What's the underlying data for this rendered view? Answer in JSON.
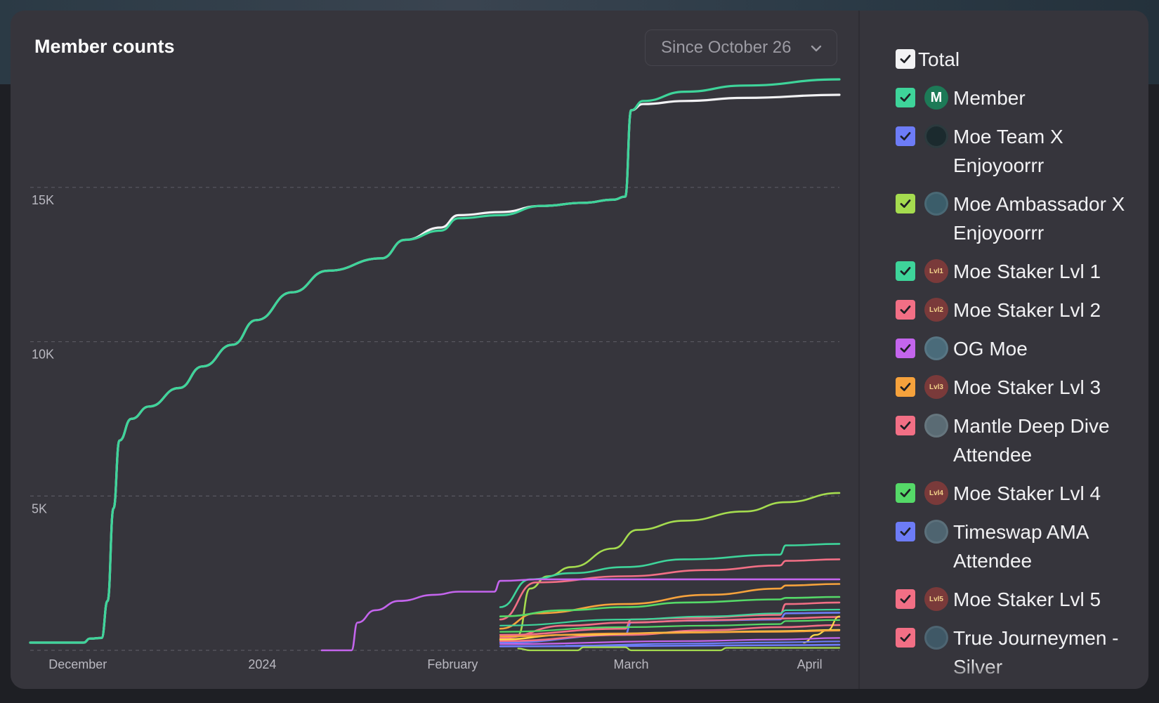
{
  "title": "Member counts",
  "range_select": {
    "label": "Since October 26",
    "icon": "chevron-down-icon"
  },
  "chart_data": {
    "type": "line",
    "title": "Member counts",
    "xlabel": "",
    "ylabel": "",
    "x_ticks": [
      "December",
      "2024",
      "February",
      "March",
      "April"
    ],
    "x_tick_positions": [
      18,
      49,
      81,
      111,
      141
    ],
    "x_domain": [
      10,
      146
    ],
    "y_ticks": [
      "5K",
      "10K",
      "15K"
    ],
    "y_tick_values": [
      5000,
      10000,
      15000
    ],
    "ylim": [
      0,
      18000
    ],
    "grid": "horizontal dashed",
    "series": [
      {
        "name": "Total",
        "color": "#f2f2f4",
        "width": 3.2,
        "points": [
          [
            10,
            250
          ],
          [
            19,
            250
          ],
          [
            20,
            380
          ],
          [
            22,
            400
          ],
          [
            23,
            1600
          ],
          [
            24,
            4600
          ],
          [
            25,
            6800
          ],
          [
            27,
            7500
          ],
          [
            30,
            7900
          ],
          [
            35,
            8500
          ],
          [
            39,
            9200
          ],
          [
            44,
            9900
          ],
          [
            48,
            10700
          ],
          [
            54,
            11600
          ],
          [
            60,
            12300
          ],
          [
            69,
            12700
          ],
          [
            73,
            13300
          ],
          [
            79,
            13700
          ],
          [
            82,
            14100
          ],
          [
            89,
            14200
          ],
          [
            96,
            14400
          ],
          [
            103,
            14500
          ],
          [
            108,
            14600
          ],
          [
            110,
            14700
          ],
          [
            111,
            17500
          ],
          [
            113,
            17700
          ],
          [
            120,
            17800
          ],
          [
            130,
            17900
          ],
          [
            146,
            18000
          ]
        ]
      },
      {
        "name": "Member",
        "color": "#3ed49a",
        "width": 3.2,
        "points": [
          [
            10,
            250
          ],
          [
            19,
            250
          ],
          [
            20,
            380
          ],
          [
            22,
            400
          ],
          [
            23,
            1600
          ],
          [
            24,
            4600
          ],
          [
            25,
            6800
          ],
          [
            27,
            7500
          ],
          [
            30,
            7900
          ],
          [
            35,
            8500
          ],
          [
            39,
            9200
          ],
          [
            44,
            9900
          ],
          [
            48,
            10700
          ],
          [
            54,
            11600
          ],
          [
            60,
            12300
          ],
          [
            69,
            12700
          ],
          [
            73,
            13300
          ],
          [
            79,
            13600
          ],
          [
            82,
            14000
          ],
          [
            89,
            14100
          ],
          [
            96,
            14400
          ],
          [
            103,
            14500
          ],
          [
            108,
            14600
          ],
          [
            110,
            14700
          ],
          [
            111,
            17500
          ],
          [
            113,
            17800
          ],
          [
            120,
            18100
          ],
          [
            130,
            18300
          ],
          [
            146,
            18500
          ]
        ]
      },
      {
        "name": "Moe Team X Enjoyoorrr",
        "color": "#6d7cf7",
        "width": 2.6,
        "points": [
          [
            89,
            130
          ],
          [
            110,
            140
          ],
          [
            126,
            160
          ],
          [
            140,
            170
          ],
          [
            146,
            180
          ]
        ]
      },
      {
        "name": "Moe Ambassador X Enjoyoorrr",
        "color": "#a5dc4f",
        "width": 2.6,
        "points": [
          [
            92,
            500
          ],
          [
            94,
            2000
          ],
          [
            97,
            2400
          ],
          [
            101,
            2700
          ],
          [
            108,
            3300
          ],
          [
            112,
            3900
          ],
          [
            120,
            4200
          ],
          [
            130,
            4500
          ],
          [
            137,
            4800
          ],
          [
            146,
            5100
          ]
        ]
      },
      {
        "name": "Moe Staker Lvl 1",
        "color": "#3ed49a",
        "width": 2.6,
        "points": [
          [
            89,
            1400
          ],
          [
            94,
            2300
          ],
          [
            101,
            2500
          ],
          [
            110,
            2700
          ],
          [
            120,
            2950
          ],
          [
            136,
            3100
          ],
          [
            137,
            3400
          ],
          [
            146,
            3450
          ]
        ]
      },
      {
        "name": "Moe Staker Lvl 2",
        "color": "#f26f85",
        "width": 2.6,
        "points": [
          [
            89,
            1000
          ],
          [
            95,
            2200
          ],
          [
            110,
            2400
          ],
          [
            124,
            2600
          ],
          [
            136,
            2750
          ],
          [
            137,
            2900
          ],
          [
            146,
            2950
          ]
        ]
      },
      {
        "name": "OG Moe",
        "color": "#c465ed",
        "width": 2.6,
        "points": [
          [
            59,
            0
          ],
          [
            64,
            0
          ],
          [
            65,
            900
          ],
          [
            68,
            1300
          ],
          [
            72,
            1600
          ],
          [
            78,
            1800
          ],
          [
            82,
            1900
          ],
          [
            88,
            1900
          ],
          [
            89,
            2250
          ],
          [
            96,
            2300
          ],
          [
            110,
            2300
          ],
          [
            146,
            2300
          ]
        ]
      },
      {
        "name": "Moe Staker Lvl 3",
        "color": "#f6a23c",
        "width": 2.6,
        "points": [
          [
            89,
            700
          ],
          [
            95,
            1200
          ],
          [
            110,
            1500
          ],
          [
            124,
            1800
          ],
          [
            136,
            2000
          ],
          [
            137,
            2100
          ],
          [
            146,
            2150
          ]
        ]
      },
      {
        "name": "Mantle Deep Dive Attendee",
        "color": "#f26f85",
        "width": 2.6,
        "points": [
          [
            89,
            500
          ],
          [
            110,
            700
          ],
          [
            111,
            1000
          ],
          [
            120,
            1050
          ],
          [
            136,
            1150
          ],
          [
            137,
            1500
          ],
          [
            146,
            1550
          ]
        ]
      },
      {
        "name": "Moe Staker Lvl 4",
        "color": "#55d968",
        "width": 2.6,
        "points": [
          [
            89,
            1100
          ],
          [
            100,
            1300
          ],
          [
            110,
            1400
          ],
          [
            120,
            1550
          ],
          [
            136,
            1650
          ],
          [
            137,
            1700
          ],
          [
            146,
            1730
          ]
        ]
      },
      {
        "name": "Timeswap AMA Attendee",
        "color": "#6d7cf7",
        "width": 2.6,
        "points": [
          [
            89,
            250
          ],
          [
            110,
            500
          ],
          [
            111,
            900
          ],
          [
            120,
            960
          ],
          [
            136,
            1000
          ],
          [
            137,
            1200
          ],
          [
            146,
            1220
          ]
        ]
      },
      {
        "name": "Moe Staker Lvl 5",
        "color": "#f26f85",
        "width": 2.6,
        "points": [
          [
            89,
            300
          ],
          [
            110,
            500
          ],
          [
            124,
            650
          ],
          [
            136,
            750
          ],
          [
            146,
            820
          ]
        ]
      },
      {
        "name": "True Journeymen - Silver",
        "color": "#f26f85",
        "width": 2.6,
        "points": [
          [
            89,
            400
          ],
          [
            100,
            800
          ],
          [
            110,
            900
          ],
          [
            124,
            980
          ],
          [
            136,
            1030
          ],
          [
            146,
            1080
          ]
        ]
      },
      {
        "name": "",
        "color": "#ffd84a",
        "width": 2.6,
        "points": [
          [
            89,
            350
          ],
          [
            100,
            500
          ],
          [
            120,
            580
          ],
          [
            136,
            620
          ],
          [
            146,
            660
          ]
        ]
      },
      {
        "name": "",
        "color": "#ffd84a",
        "width": 2.2,
        "points": [
          [
            140,
            250
          ],
          [
            142,
            500
          ],
          [
            144,
            650
          ],
          [
            146,
            1100
          ]
        ]
      },
      {
        "name": "",
        "color": "#a5dc4f",
        "width": 2.2,
        "points": [
          [
            92,
            60
          ],
          [
            94,
            0
          ],
          [
            98,
            0
          ],
          [
            102,
            0
          ],
          [
            103,
            100
          ],
          [
            110,
            100
          ],
          [
            111,
            0
          ],
          [
            126,
            0
          ],
          [
            127,
            80
          ],
          [
            146,
            80
          ]
        ]
      },
      {
        "name": "",
        "color": "#55d968",
        "width": 2.2,
        "points": [
          [
            89,
            600
          ],
          [
            110,
            750
          ],
          [
            124,
            800
          ],
          [
            136,
            850
          ],
          [
            137,
            950
          ],
          [
            146,
            980
          ]
        ]
      },
      {
        "name": "",
        "color": "#c465ed",
        "width": 2.2,
        "points": [
          [
            89,
            200
          ],
          [
            120,
            300
          ],
          [
            136,
            350
          ],
          [
            146,
            400
          ]
        ]
      },
      {
        "name": "",
        "color": "#6d7cf7",
        "width": 2.2,
        "points": [
          [
            100,
            150
          ],
          [
            120,
            220
          ],
          [
            136,
            260
          ],
          [
            146,
            290
          ]
        ]
      },
      {
        "name": "",
        "color": "#f6a23c",
        "width": 2.2,
        "points": [
          [
            89,
            450
          ],
          [
            110,
            550
          ],
          [
            136,
            600
          ],
          [
            146,
            640
          ]
        ]
      },
      {
        "name": "",
        "color": "#3ed49a",
        "width": 2.2,
        "points": [
          [
            89,
            800
          ],
          [
            110,
            1000
          ],
          [
            124,
            1100
          ],
          [
            136,
            1200
          ],
          [
            137,
            1300
          ],
          [
            146,
            1320
          ]
        ]
      }
    ]
  },
  "legend": [
    {
      "label": "Total",
      "check_color": "#f2f2f4",
      "check_mark_color": "#1e1f24",
      "avatar": ""
    },
    {
      "label": "Member",
      "check_color": "#3ed49a",
      "check_mark_color": "#1e1f24",
      "avatar": "M"
    },
    {
      "label": "Moe Team X Enjoyoorrr",
      "check_color": "#6d7cf7",
      "check_mark_color": "#1e1f24",
      "avatar": ""
    },
    {
      "label": "Moe Ambassador X Enjoyoorrr",
      "check_color": "#a5dc4f",
      "check_mark_color": "#1e1f24",
      "avatar": ""
    },
    {
      "label": "Moe Staker Lvl 1",
      "check_color": "#3ed49a",
      "check_mark_color": "#1e1f24",
      "avatar": "Lvl1"
    },
    {
      "label": "Moe Staker Lvl 2",
      "check_color": "#f26f85",
      "check_mark_color": "#1e1f24",
      "avatar": "Lvl2"
    },
    {
      "label": "OG Moe",
      "check_color": "#c465ed",
      "check_mark_color": "#1e1f24",
      "avatar": ""
    },
    {
      "label": "Moe Staker Lvl 3",
      "check_color": "#f6a23c",
      "check_mark_color": "#1e1f24",
      "avatar": "Lvl3"
    },
    {
      "label": "Mantle Deep Dive Attendee",
      "check_color": "#f26f85",
      "check_mark_color": "#1e1f24",
      "avatar": ""
    },
    {
      "label": "Moe Staker Lvl 4",
      "check_color": "#55d968",
      "check_mark_color": "#1e1f24",
      "avatar": "Lvl4"
    },
    {
      "label": "Timeswap AMA Attendee",
      "check_color": "#6d7cf7",
      "check_mark_color": "#1e1f24",
      "avatar": ""
    },
    {
      "label": "Moe Staker Lvl 5",
      "check_color": "#f26f85",
      "check_mark_color": "#1e1f24",
      "avatar": "Lvl5"
    },
    {
      "label": "True Journeymen - Silver",
      "check_color": "#f26f85",
      "check_mark_color": "#1e1f24",
      "avatar": ""
    },
    {
      "label": "",
      "check_color": "#7fae3a",
      "check_mark_color": "#1e1f24",
      "avatar": ""
    }
  ]
}
